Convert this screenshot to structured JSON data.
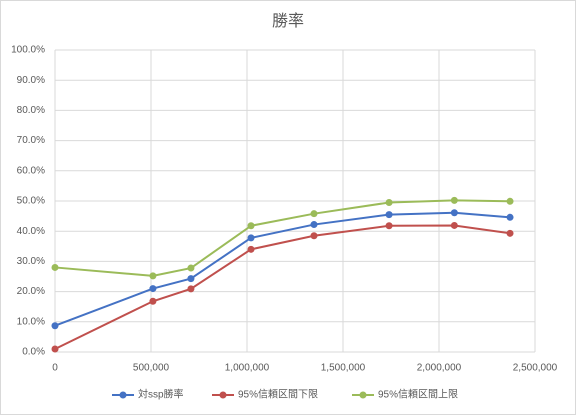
{
  "chart_data": {
    "type": "line",
    "title": "勝率",
    "x": [
      0,
      510000,
      708000,
      1021000,
      1349000,
      1740000,
      2080000,
      2370000
    ],
    "series": [
      {
        "name": "対ssp勝率",
        "color": "#4472c4",
        "values": [
          8.7,
          21.0,
          24.3,
          37.8,
          42.2,
          45.5,
          46.1,
          44.6
        ]
      },
      {
        "name": "95%信頼区間下限",
        "color": "#c0504d",
        "values": [
          1.0,
          16.8,
          20.9,
          34.0,
          38.5,
          41.8,
          41.9,
          39.3
        ]
      },
      {
        "name": "95%信頼区間上限",
        "color": "#9bbb59",
        "values": [
          28.0,
          25.2,
          27.8,
          41.8,
          45.8,
          49.5,
          50.2,
          49.9
        ]
      }
    ],
    "xlim": [
      0,
      2500000
    ],
    "xticks": [
      0,
      {
        "value": 500000,
        "label": "500,000"
      },
      {
        "value": 1000000,
        "label": "1,000,000"
      },
      {
        "value": 1500000,
        "label": "1,500,000"
      },
      {
        "value": 2000000,
        "label": "2,000,000"
      },
      {
        "value": 2500000,
        "label": "2,500,000"
      }
    ],
    "ylim": [
      0,
      100
    ],
    "yticks": [
      {
        "value": 0,
        "label": "0.0%"
      },
      {
        "value": 10,
        "label": "10.0%"
      },
      {
        "value": 20,
        "label": "20.0%"
      },
      {
        "value": 30,
        "label": "30.0%"
      },
      {
        "value": 40,
        "label": "40.0%"
      },
      {
        "value": 50,
        "label": "50.0%"
      },
      {
        "value": 60,
        "label": "60.0%"
      },
      {
        "value": 70,
        "label": "70.0%"
      },
      {
        "value": 80,
        "label": "80.0%"
      },
      {
        "value": 90,
        "label": "90.0%"
      },
      {
        "value": 100,
        "label": "100.0%"
      }
    ],
    "grid": true,
    "legend": "bottom"
  }
}
